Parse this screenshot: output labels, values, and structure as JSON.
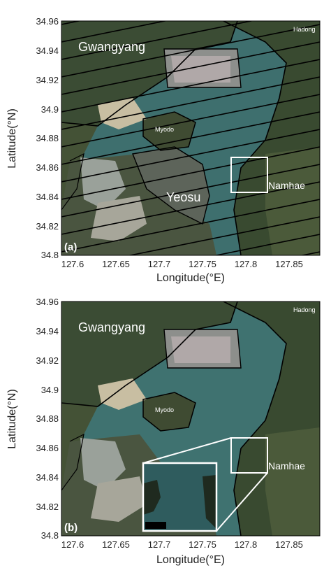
{
  "panels": [
    {
      "id": "a",
      "panel_label": "(a)",
      "xlabel": "Longitude(°E)",
      "ylabel": "Latitude(°N)",
      "x_ticks": [
        "127.6",
        "127.65",
        "127.7",
        "127.75",
        "127.8",
        "127.85"
      ],
      "y_ticks": [
        "34.96",
        "34.94",
        "34.92",
        "34.9",
        "34.88",
        "34.86",
        "34.84",
        "34.82",
        "34.8"
      ],
      "place_labels": {
        "gwangyang": "Gwangyang",
        "myodo": "Myodo",
        "yeosu": "Yeosu",
        "namhae": "Namhae",
        "hadong": "Hadong"
      }
    },
    {
      "id": "b",
      "panel_label": "(b)",
      "xlabel": "Longitude(°E)",
      "ylabel": "Latitude(°N)",
      "x_ticks": [
        "127.6",
        "127.65",
        "127.7",
        "127.75",
        "127.8",
        "127.85"
      ],
      "y_ticks": [
        "34.96",
        "34.94",
        "34.92",
        "34.9",
        "34.88",
        "34.86",
        "34.84",
        "34.82",
        "34.8"
      ],
      "place_labels": {
        "gwangyang": "Gwangyang",
        "myodo": "Myodo",
        "namhae": "Namhae",
        "hadong": "Hadong"
      }
    }
  ],
  "colors": {
    "water": "#3e6f6e",
    "land": "#3a4a33",
    "urban": "#8a8f8a",
    "coast": "#000000",
    "box": "#ffffff"
  }
}
